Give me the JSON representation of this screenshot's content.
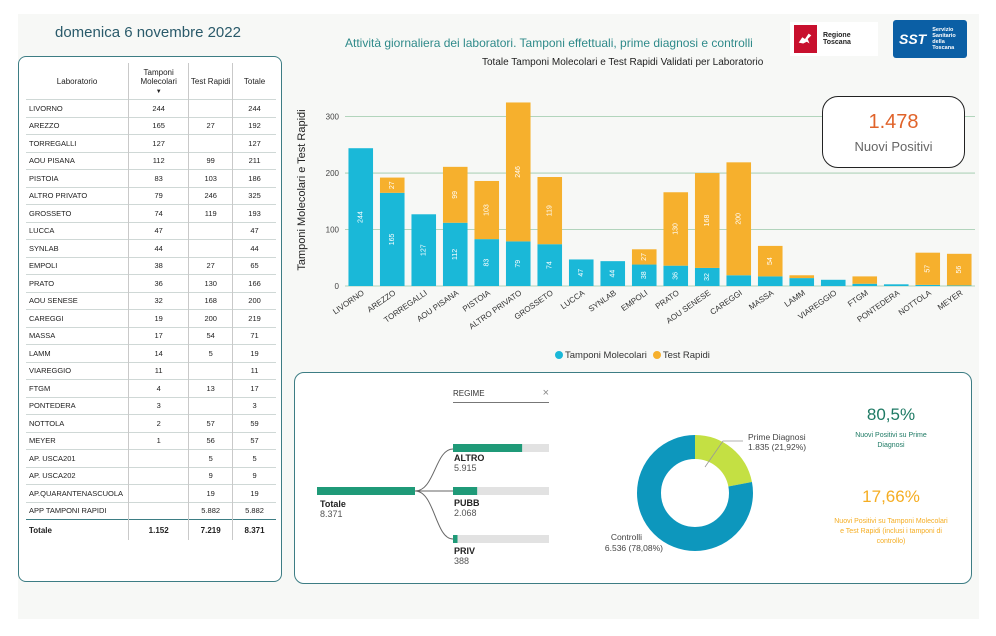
{
  "header": {
    "date": "domenica 6 novembre 2022",
    "subtitle": "Attività giornaliera dei laboratori. Tamponi effettuali, prime diagnosi e controlli",
    "logo1_text": "Regione Toscana",
    "logo2_abbr": "SST",
    "logo2_text": "Servizio Sanitario della Toscana"
  },
  "table": {
    "headers": [
      "Laboratorio",
      "Tamponi Molecolari",
      "Test Rapidi",
      "Totale"
    ],
    "rows": [
      [
        "LIVORNO",
        "244",
        "",
        "244"
      ],
      [
        "AREZZO",
        "165",
        "27",
        "192"
      ],
      [
        "TORREGALLI",
        "127",
        "",
        "127"
      ],
      [
        "AOU PISANA",
        "112",
        "99",
        "211"
      ],
      [
        "PISTOIA",
        "83",
        "103",
        "186"
      ],
      [
        "ALTRO PRIVATO",
        "79",
        "246",
        "325"
      ],
      [
        "GROSSETO",
        "74",
        "119",
        "193"
      ],
      [
        "LUCCA",
        "47",
        "",
        "47"
      ],
      [
        "SYNLAB",
        "44",
        "",
        "44"
      ],
      [
        "EMPOLI",
        "38",
        "27",
        "65"
      ],
      [
        "PRATO",
        "36",
        "130",
        "166"
      ],
      [
        "AOU SENESE",
        "32",
        "168",
        "200"
      ],
      [
        "CAREGGI",
        "19",
        "200",
        "219"
      ],
      [
        "MASSA",
        "17",
        "54",
        "71"
      ],
      [
        "LAMM",
        "14",
        "5",
        "19"
      ],
      [
        "VIAREGGIO",
        "11",
        "",
        "11"
      ],
      [
        "FTGM",
        "4",
        "13",
        "17"
      ],
      [
        "PONTEDERA",
        "3",
        "",
        "3"
      ],
      [
        "NOTTOLA",
        "2",
        "57",
        "59"
      ],
      [
        "MEYER",
        "1",
        "56",
        "57"
      ],
      [
        "AP. USCA201",
        "",
        "5",
        "5"
      ],
      [
        "AP. USCA202",
        "",
        "9",
        "9"
      ],
      [
        "AP.QUARANTENASCUOLA",
        "",
        "19",
        "19"
      ],
      [
        "APP TAMPONI RAPIDI",
        "",
        "5.882",
        "5.882"
      ]
    ],
    "total": [
      "Totale",
      "1.152",
      "7.219",
      "8.371"
    ]
  },
  "chart_data": {
    "type": "bar",
    "title": "Totale Tamponi Molecolari e Test Rapidi Validati per Laboratorio",
    "ylabel": "Tamponi Molecolari e Test Rapidi",
    "ylim": [
      0,
      340
    ],
    "yticks": [
      0,
      100,
      200,
      300
    ],
    "stacked": true,
    "categories": [
      "LIVORNO",
      "AREZZO",
      "TORREGALLI",
      "AOU PISANA",
      "PISTOIA",
      "ALTRO PRIVATO",
      "GROSSETO",
      "LUCCA",
      "SYNLAB",
      "EMPOLI",
      "PRATO",
      "AOU SENESE",
      "CAREGGI",
      "MASSA",
      "LAMM",
      "VIAREGGIO",
      "FTGM",
      "PONTEDERA",
      "NOTTOLA",
      "MEYER"
    ],
    "series": [
      {
        "name": "Tamponi Molecolari",
        "color": "#1ab8d8",
        "values": [
          244,
          165,
          127,
          112,
          83,
          79,
          74,
          47,
          44,
          38,
          36,
          32,
          19,
          17,
          14,
          11,
          4,
          3,
          2,
          1
        ]
      },
      {
        "name": "Test Rapidi",
        "color": "#f6b02d",
        "values": [
          0,
          27,
          0,
          99,
          103,
          246,
          119,
          0,
          0,
          27,
          130,
          168,
          200,
          54,
          5,
          0,
          13,
          0,
          57,
          56
        ]
      }
    ],
    "legend_position": "bottom"
  },
  "kpi": {
    "value": "1.478",
    "label": "Nuovi Positivi"
  },
  "tree": {
    "filter_label": "REGIME",
    "root": {
      "label": "Totale",
      "value": "8.371",
      "fraction": 1.0
    },
    "children": [
      {
        "label": "ALTRO",
        "value": "5.915",
        "fraction": 0.707
      },
      {
        "label": "PUBB",
        "value": "2.068",
        "fraction": 0.247
      },
      {
        "label": "PRIV",
        "value": "388",
        "fraction": 0.046
      }
    ],
    "colors": {
      "bar": "#1f9a78",
      "track": "#e2e2e2"
    }
  },
  "donut": {
    "slices": [
      {
        "label": "Prime Diagnosi",
        "value_text": "1.835 (21,92%)",
        "percent": 21.92,
        "color": "#c4e043"
      },
      {
        "label": "Controlli",
        "value_text": "6.536 (78,08%)",
        "percent": 78.08,
        "color": "#0d97bd"
      }
    ]
  },
  "stats": {
    "pct1": "80,5%",
    "pct1_desc": "Nuovi Positivi su Prime Diagnosi",
    "pct2": "17,66%",
    "pct2_desc": "Nuovi Positivi su Tamponi Molecolari e Test Rapidi (inclusi i tamponi di controllo)"
  }
}
